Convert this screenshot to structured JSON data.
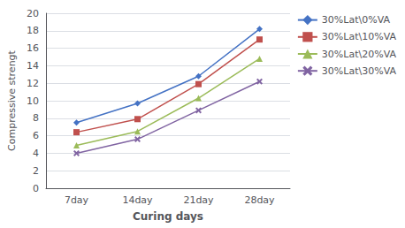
{
  "chart_data": {
    "type": "line",
    "categories": [
      "7day",
      "14day",
      "21day",
      "28day"
    ],
    "series": [
      {
        "name": "30%Lat\\0%VA",
        "color": "#4472C4",
        "marker": "diamond",
        "values": [
          7.5,
          9.7,
          12.8,
          18.2
        ]
      },
      {
        "name": "30%Lat\\10%VA",
        "color": "#C0504D",
        "marker": "square",
        "values": [
          6.4,
          7.9,
          11.9,
          17.0
        ]
      },
      {
        "name": "30%Lat\\20%VA",
        "color": "#9BBB59",
        "marker": "triangle",
        "values": [
          4.9,
          6.5,
          10.3,
          14.8
        ]
      },
      {
        "name": "30%Lat\\30%VA",
        "color": "#8064A2",
        "marker": "x",
        "values": [
          4.0,
          5.6,
          8.9,
          12.2
        ]
      }
    ],
    "ylabel": "Compressive strengt",
    "xlabel": "Curing days",
    "ylim": [
      0,
      20
    ],
    "yticks": [
      0,
      2,
      4,
      6,
      8,
      10,
      12,
      14,
      16,
      18,
      20
    ],
    "grid": true,
    "legend": "right"
  }
}
